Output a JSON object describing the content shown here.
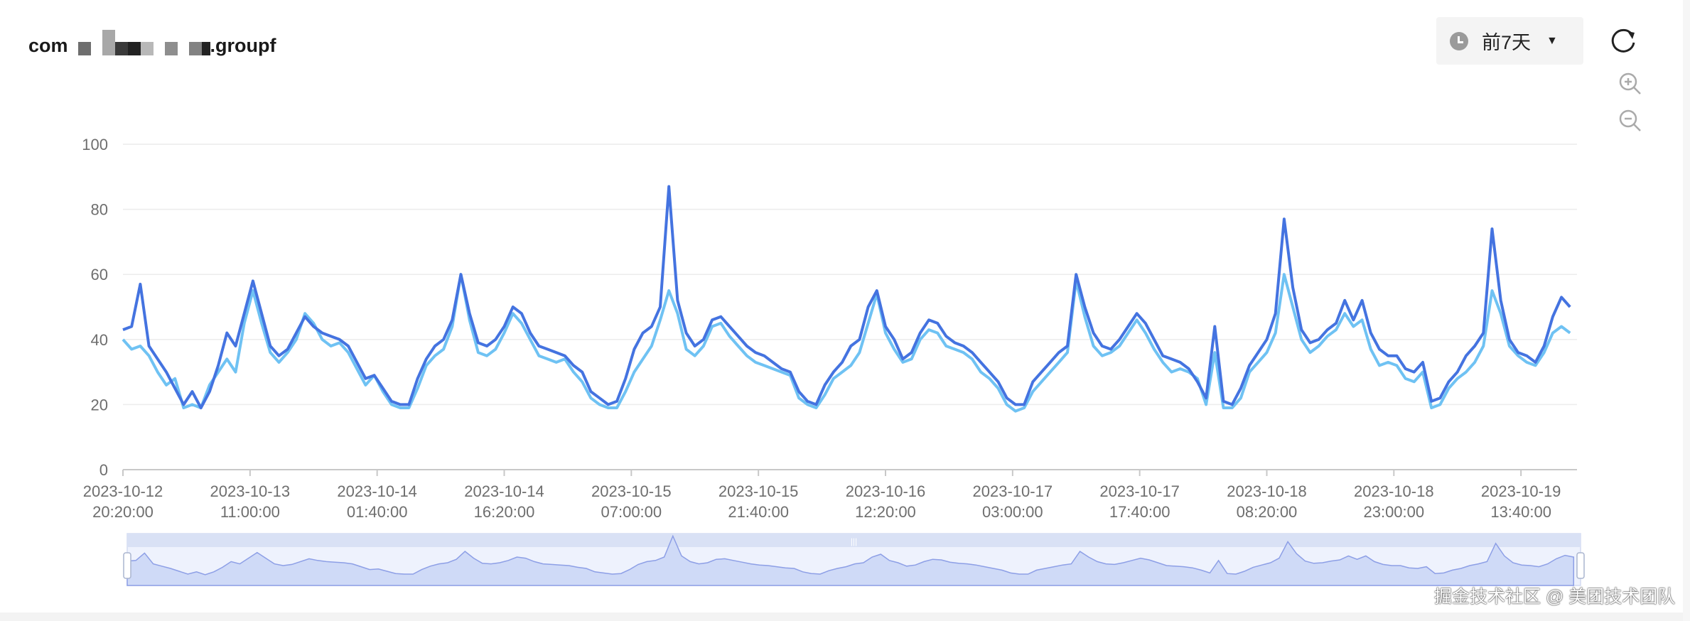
{
  "header": {
    "title_prefix": "com",
    "title_suffix": ".groupf",
    "time_range_label": "前7天",
    "time_range_icon": "clock-icon",
    "dropdown_icon": "caret-down-icon",
    "refresh_icon": "refresh-icon",
    "zoom_in_icon": "zoom-in-icon",
    "zoom_out_icon": "zoom-out-icon"
  },
  "watermark": "掘金技术社区 @ 美团技术团队",
  "chart_data": {
    "type": "line",
    "title": "",
    "xlabel": "",
    "ylabel": "",
    "ylim": [
      0,
      100
    ],
    "y_ticks": [
      "0",
      "20",
      "40",
      "60",
      "80",
      "100"
    ],
    "x_range": [
      "2023-10-12 20:20:00",
      "2023-10-19 20:08:00"
    ],
    "x_step": "1h",
    "x_ticks": [
      [
        "2023-10-12",
        "20:20:00"
      ],
      [
        "2023-10-13",
        "11:00:00"
      ],
      [
        "2023-10-14",
        "01:40:00"
      ],
      [
        "2023-10-14",
        "16:20:00"
      ],
      [
        "2023-10-15",
        "07:00:00"
      ],
      [
        "2023-10-15",
        "21:40:00"
      ],
      [
        "2023-10-16",
        "12:20:00"
      ],
      [
        "2023-10-17",
        "03:00:00"
      ],
      [
        "2023-10-17",
        "17:40:00"
      ],
      [
        "2023-10-18",
        "08:20:00"
      ],
      [
        "2023-10-18",
        "23:00:00"
      ],
      [
        "2023-10-19",
        "13:40:00"
      ]
    ],
    "grid": true,
    "legend": "none",
    "has_data_zoom_slider": true,
    "series": [
      {
        "color": "#4473e0",
        "values": [
          43,
          44,
          57,
          38,
          34,
          30,
          25,
          20,
          24,
          19,
          24,
          32,
          42,
          38,
          48,
          58,
          48,
          38,
          35,
          37,
          42,
          47,
          44,
          42,
          41,
          40,
          38,
          33,
          28,
          29,
          25,
          21,
          20,
          20,
          28,
          34,
          38,
          40,
          46,
          60,
          48,
          39,
          38,
          40,
          44,
          50,
          48,
          42,
          38,
          37,
          36,
          35,
          32,
          30,
          24,
          22,
          20,
          21,
          28,
          37,
          42,
          44,
          50,
          87,
          52,
          42,
          38,
          40,
          46,
          47,
          44,
          41,
          38,
          36,
          35,
          33,
          31,
          30,
          24,
          21,
          20,
          26,
          30,
          33,
          38,
          40,
          50,
          55,
          44,
          40,
          34,
          36,
          42,
          46,
          45,
          41,
          39,
          38,
          36,
          33,
          30,
          27,
          22,
          20,
          20,
          27,
          30,
          33,
          36,
          38,
          60,
          50,
          42,
          38,
          37,
          40,
          44,
          48,
          45,
          40,
          35,
          34,
          33,
          31,
          27,
          22,
          44,
          21,
          20,
          25,
          32,
          36,
          40,
          48,
          77,
          56,
          43,
          39,
          40,
          43,
          45,
          52,
          46,
          52,
          42,
          37,
          35,
          35,
          31,
          30,
          33,
          21,
          22,
          27,
          30,
          35,
          38,
          42,
          74,
          52,
          40,
          36,
          35,
          33,
          38,
          47,
          53,
          50
        ]
      },
      {
        "color": "#6fc2f3",
        "values": [
          40,
          37,
          38,
          35,
          30,
          26,
          28,
          19,
          20,
          19,
          26,
          30,
          34,
          30,
          45,
          55,
          45,
          36,
          33,
          36,
          40,
          48,
          45,
          40,
          38,
          39,
          36,
          31,
          26,
          29,
          24,
          20,
          19,
          19,
          25,
          32,
          35,
          37,
          44,
          60,
          46,
          36,
          35,
          37,
          42,
          48,
          45,
          40,
          35,
          34,
          33,
          34,
          30,
          27,
          22,
          20,
          19,
          19,
          24,
          30,
          34,
          38,
          46,
          55,
          48,
          37,
          35,
          38,
          44,
          45,
          41,
          38,
          35,
          33,
          32,
          31,
          30,
          29,
          22,
          20,
          19,
          23,
          28,
          30,
          32,
          36,
          45,
          54,
          42,
          37,
          33,
          34,
          40,
          43,
          42,
          38,
          37,
          36,
          34,
          30,
          28,
          25,
          20,
          18,
          19,
          24,
          27,
          30,
          33,
          36,
          58,
          47,
          38,
          35,
          36,
          38,
          42,
          46,
          42,
          37,
          33,
          30,
          31,
          30,
          28,
          20,
          36,
          19,
          19,
          22,
          30,
          33,
          36,
          42,
          60,
          50,
          40,
          36,
          38,
          41,
          43,
          48,
          44,
          46,
          37,
          32,
          33,
          32,
          28,
          27,
          30,
          19,
          20,
          25,
          28,
          30,
          33,
          38,
          55,
          48,
          38,
          35,
          33,
          32,
          36,
          42,
          44,
          42
        ]
      }
    ]
  }
}
